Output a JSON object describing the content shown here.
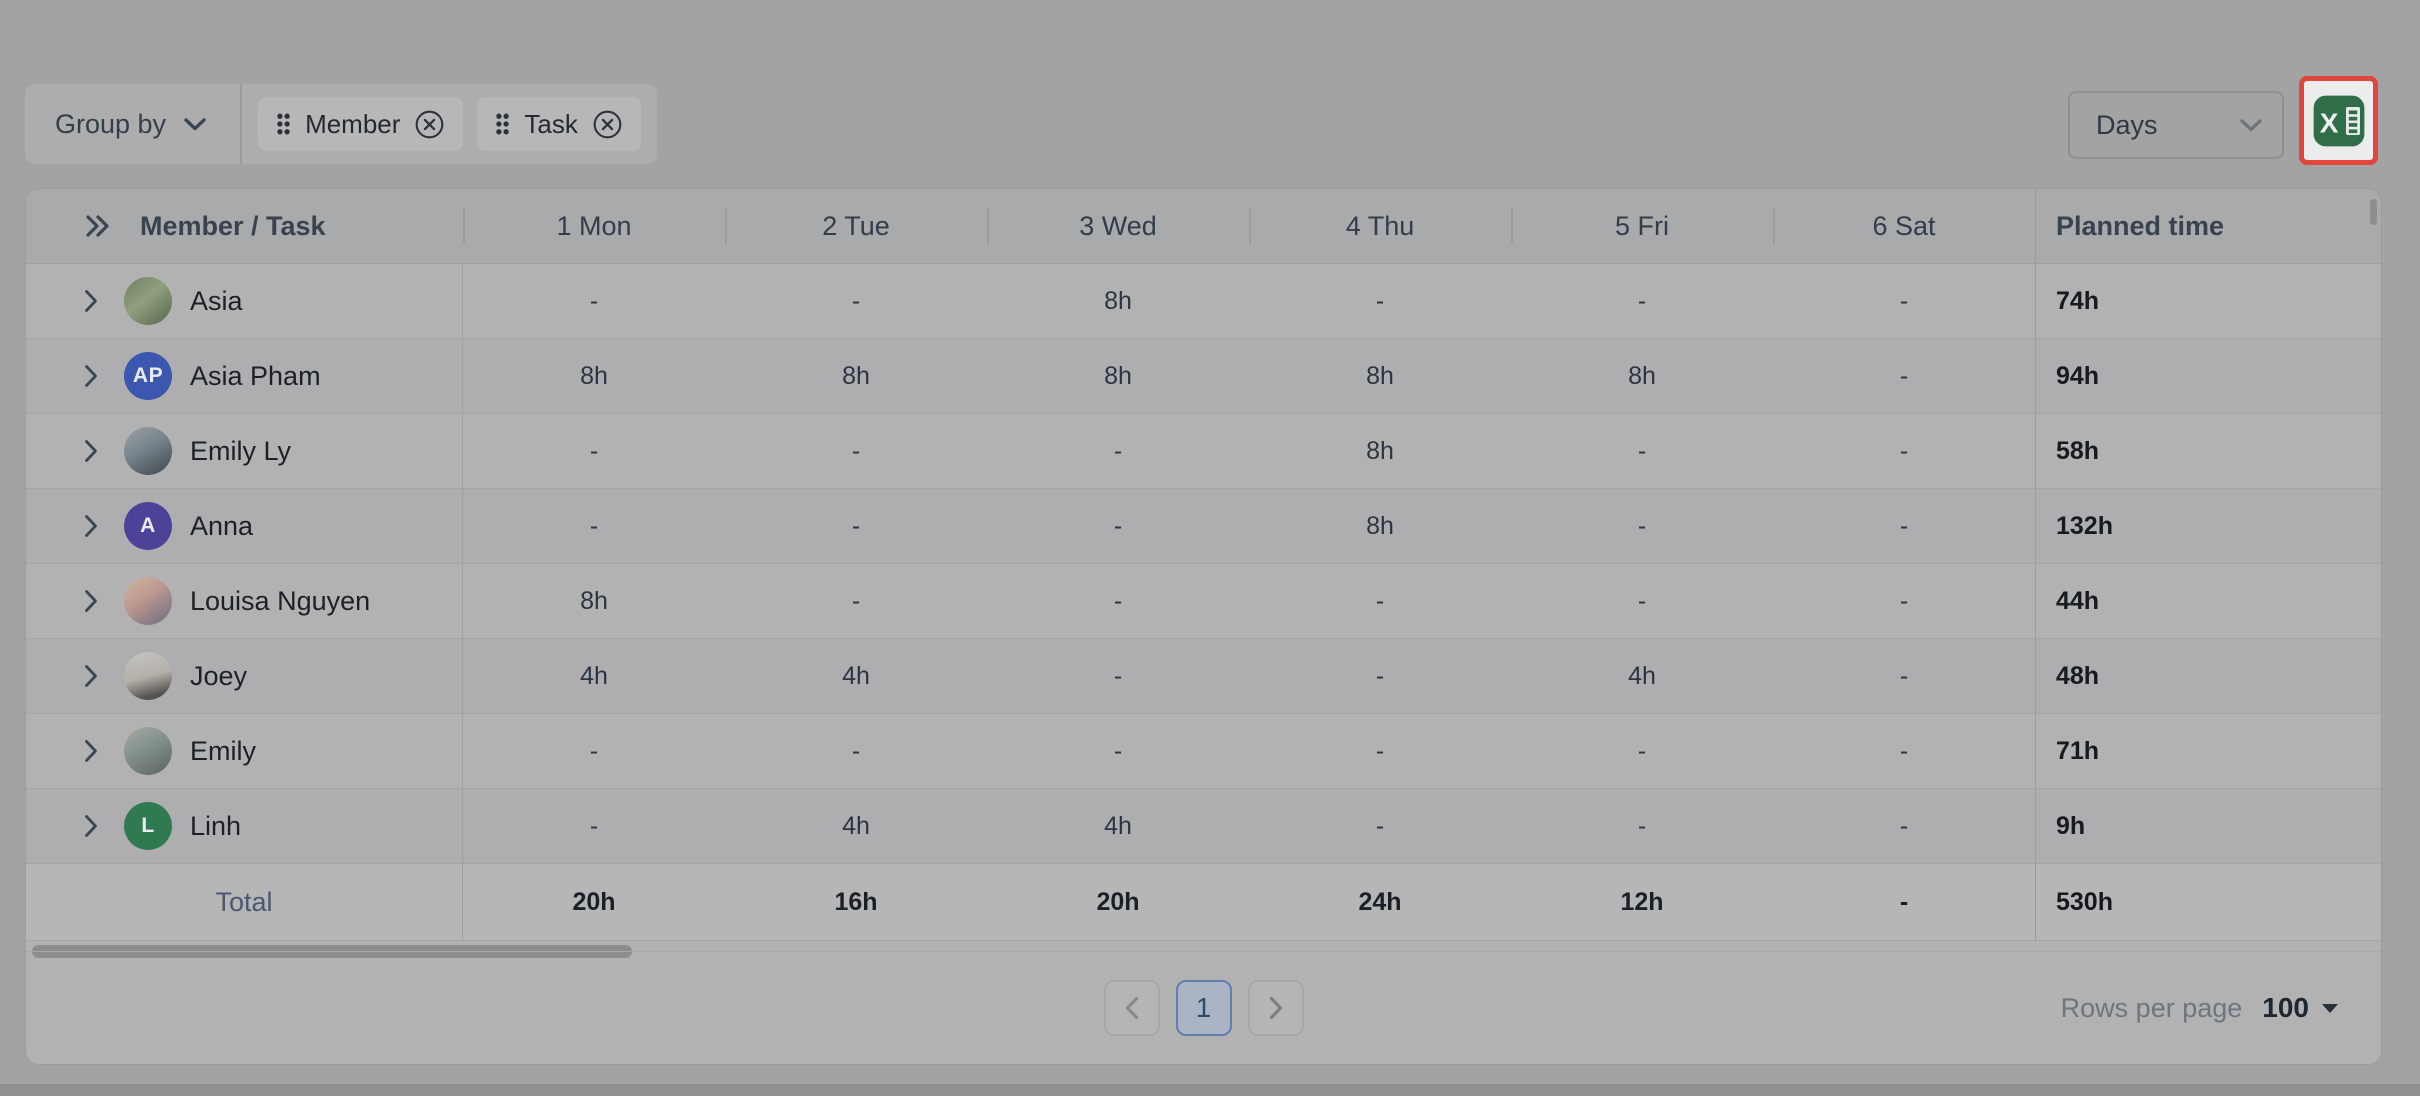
{
  "toolbar": {
    "group_by": {
      "label": "Group by",
      "icon": "chevron-down-icon"
    },
    "chips": [
      {
        "label": "Member",
        "drag_icon": "drag-handle-icon",
        "remove_icon": "remove-circle-icon"
      },
      {
        "label": "Task",
        "drag_icon": "drag-handle-icon",
        "remove_icon": "remove-circle-icon"
      }
    ],
    "interval_select": {
      "value": "Days",
      "icon": "chevron-down-icon"
    },
    "export": {
      "icon": "excel-export-icon",
      "highlight_color": "#e0463c",
      "excel_green": "#2f6e49"
    }
  },
  "table": {
    "columns": [
      "Member / Task",
      "1 Mon",
      "2 Tue",
      "3 Wed",
      "4 Thu",
      "5 Fri",
      "6 Sat",
      "Planned time"
    ],
    "collapse_icon": "double-chevron-right-icon",
    "row_expand_icon": "chevron-right-icon",
    "rows": [
      {
        "name": "Asia",
        "avatar": {
          "type": "photo",
          "variant": "forest"
        },
        "values": [
          "-",
          "-",
          "8h",
          "-",
          "-",
          "-"
        ],
        "planned": "74h"
      },
      {
        "name": "Asia Pham",
        "avatar": {
          "type": "initials",
          "text": "AP",
          "color": "#3b57b0"
        },
        "values": [
          "8h",
          "8h",
          "8h",
          "8h",
          "8h",
          "-"
        ],
        "planned": "94h"
      },
      {
        "name": "Emily Ly",
        "avatar": {
          "type": "photo",
          "variant": "mountain-dark"
        },
        "values": [
          "-",
          "-",
          "-",
          "8h",
          "-",
          "-"
        ],
        "planned": "58h"
      },
      {
        "name": "Anna",
        "avatar": {
          "type": "initials",
          "text": "A",
          "color": "#4c4398"
        },
        "values": [
          "-",
          "-",
          "-",
          "8h",
          "-",
          "-"
        ],
        "planned": "132h"
      },
      {
        "name": "Louisa Nguyen",
        "avatar": {
          "type": "photo",
          "variant": "sunset"
        },
        "values": [
          "8h",
          "-",
          "-",
          "-",
          "-",
          "-"
        ],
        "planned": "44h"
      },
      {
        "name": "Joey",
        "avatar": {
          "type": "photo",
          "variant": "portrait-light"
        },
        "values": [
          "4h",
          "4h",
          "-",
          "-",
          "4h",
          "-"
        ],
        "planned": "48h"
      },
      {
        "name": "Emily",
        "avatar": {
          "type": "photo",
          "variant": "mountain-green"
        },
        "values": [
          "-",
          "-",
          "-",
          "-",
          "-",
          "-"
        ],
        "planned": "71h"
      },
      {
        "name": "Linh",
        "avatar": {
          "type": "initials",
          "text": "L",
          "color": "#2f7a50"
        },
        "values": [
          "-",
          "4h",
          "4h",
          "-",
          "-",
          "-"
        ],
        "planned": "9h"
      }
    ],
    "total": {
      "label": "Total",
      "values": [
        "20h",
        "16h",
        "20h",
        "24h",
        "12h",
        "-"
      ],
      "planned": "530h"
    }
  },
  "pagination": {
    "previous_icon": "chevron-left-icon",
    "page": "1",
    "next_icon": "chevron-right-icon",
    "rows_per_page_label": "Rows per page",
    "rows_per_page_value": "100",
    "rows_per_page_icon": "caret-down-icon"
  }
}
